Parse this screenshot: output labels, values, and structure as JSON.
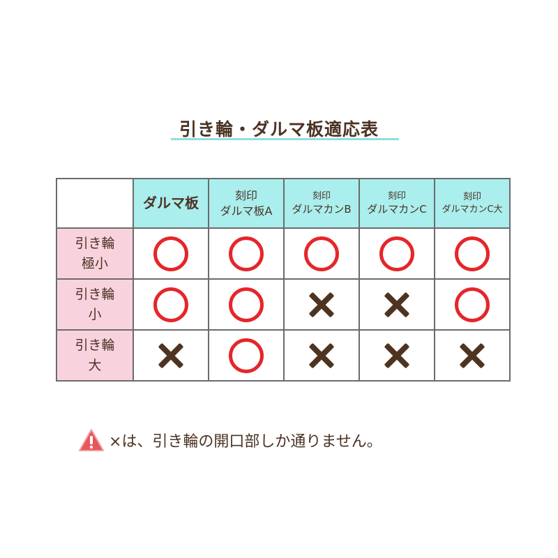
{
  "title": "引き輪・ダルマ板適応表",
  "table": {
    "columns": [
      {
        "line1": "",
        "line2": "ダルマ板"
      },
      {
        "line1": "刻印",
        "line2": "ダルマ板A"
      },
      {
        "line1": "刻印",
        "line2": "ダルマカンB"
      },
      {
        "line1": "刻印",
        "line2": "ダルマカンC"
      },
      {
        "line1": "刻印",
        "line2": "ダルマカンC大"
      }
    ],
    "rows": [
      {
        "line1": "引き輪",
        "line2": "極小",
        "marks": [
          "o",
          "o",
          "o",
          "o",
          "o"
        ]
      },
      {
        "line1": "引き輪",
        "line2": "小",
        "marks": [
          "o",
          "o",
          "x",
          "x",
          "o"
        ]
      },
      {
        "line1": "引き輪",
        "line2": "大",
        "marks": [
          "x",
          "o",
          "x",
          "x",
          "x"
        ]
      }
    ],
    "mark_legend": {
      "o": "circle (compatible)",
      "x": "cross (not compatible)"
    },
    "colors": {
      "header": "#aaeeee",
      "row_header": "#f8d3de",
      "circle": "#e5262a",
      "cross": "#4e3420"
    }
  },
  "note": {
    "icon": "warning-icon",
    "text": "×は、引き輪の開口部しか通りません。"
  }
}
